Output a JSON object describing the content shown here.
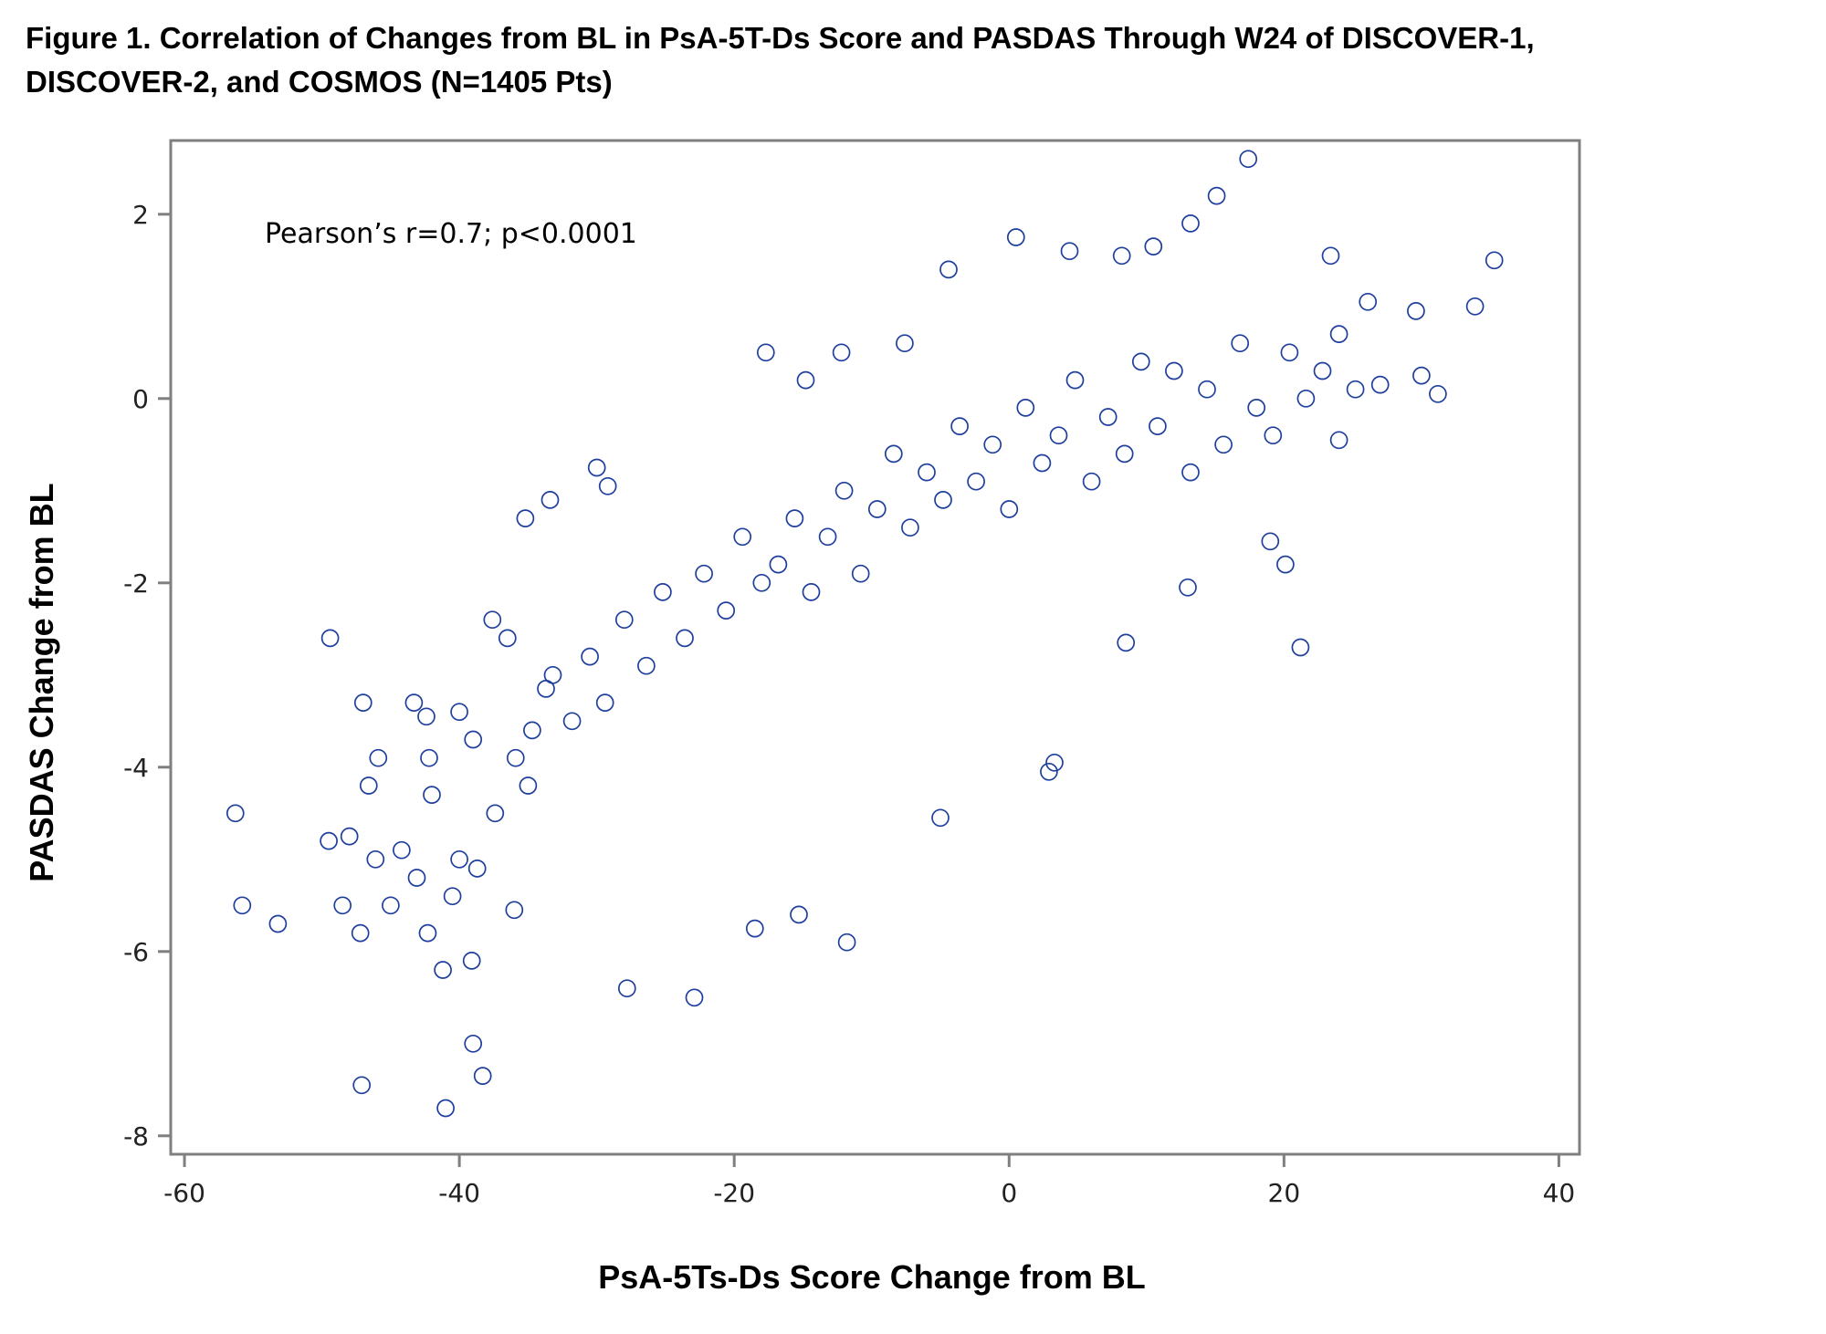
{
  "title": {
    "line1": "Figure 1. Correlation of Changes from BL in PsA-5T-Ds Score and PASDAS Through W24 of DISCOVER-1,",
    "line2": "DISCOVER-2, and COSMOS (N=1405 Pts)"
  },
  "chart_data": {
    "type": "scatter",
    "xlabel": "PsA-5Ts-Ds Score Change from BL",
    "ylabel": "PASDAS Change from BL",
    "annotation": "Pearson’s r=0.7;  p<0.0001",
    "xlim": [
      -61,
      41.5
    ],
    "ylim": [
      -8.2,
      2.8
    ],
    "x_ticks": [
      -60,
      -40,
      -20,
      0,
      20,
      40
    ],
    "x_tick_labels": [
      "-60",
      "-40",
      "-20",
      "0",
      "20",
      "40"
    ],
    "y_ticks": [
      -8,
      -6,
      -4,
      -2,
      0,
      2
    ],
    "y_tick_labels": [
      "-8",
      "-6",
      "-4",
      "-2",
      "0",
      "2"
    ],
    "grid": false,
    "legend": "none",
    "marker": "open-circle",
    "color": "#1f3f9e",
    "correlation_r": 0.7,
    "n_points": 1405,
    "x": [
      -56.3,
      -55.8,
      -53.2,
      -49.4,
      -49.5,
      -48.5,
      -47.2,
      -47.0,
      -46.6,
      -46.1,
      -45.0,
      -44.2,
      -43.1,
      -42.3,
      -42.0,
      -41.2,
      -40.5,
      -40.0,
      -39.1,
      -39.0,
      -38.3,
      -41.0,
      -47.1,
      -17.7,
      -14.8,
      -12.2,
      -7.6,
      -4.4,
      0.5,
      4.4,
      8.2,
      10.5,
      13.2,
      15.1,
      17.4,
      23.4,
      26.1,
      29.6,
      33.9,
      35.3,
      31.2,
      30.0,
      27.0,
      21.2,
      20.1,
      19.0,
      24.0,
      13.0,
      8.5,
      3.3,
      2.9,
      -5.0,
      -11.8,
      -15.3,
      -18.5,
      -22.9,
      -27.8,
      -36.0,
      -38.7,
      -42.4,
      -45.9,
      -48.0,
      -33.4,
      -30.0,
      -29.2,
      -35.2,
      -37.6,
      -36.5,
      -33.7,
      -34.7,
      -43.3,
      -42.2,
      -40.0,
      -39.0,
      -37.4,
      -35.9,
      -35.0,
      -33.2,
      -31.8,
      -30.5,
      -29.4,
      -28.0,
      -26.4,
      -25.2,
      -23.6,
      -22.2,
      -20.6,
      -19.4,
      -18.0,
      -16.8,
      -15.6,
      -14.4,
      -13.2,
      -12.0,
      -10.8,
      -9.6,
      -8.4,
      -7.2,
      -6.0,
      -4.8,
      -3.6,
      -2.4,
      -1.2,
      0.0,
      1.2,
      2.4,
      3.6,
      4.8,
      6.0,
      7.2,
      8.4,
      9.6,
      10.8,
      12.0,
      13.2,
      14.4,
      15.6,
      16.8,
      18.0,
      19.2,
      20.4,
      21.6,
      22.8,
      24.0,
      25.2
    ],
    "y": [
      -4.5,
      -5.5,
      -5.7,
      -2.6,
      -4.8,
      -5.5,
      -5.8,
      -3.3,
      -4.2,
      -5.0,
      -5.5,
      -4.9,
      -5.2,
      -5.8,
      -4.3,
      -6.2,
      -5.4,
      -5.0,
      -6.1,
      -7.0,
      -7.35,
      -7.7,
      -7.45,
      0.5,
      0.2,
      0.5,
      0.6,
      1.4,
      1.75,
      1.6,
      1.55,
      1.65,
      1.9,
      2.2,
      2.6,
      1.55,
      1.05,
      0.95,
      1.0,
      1.5,
      0.05,
      0.25,
      0.15,
      -2.7,
      -1.8,
      -1.55,
      -0.45,
      -2.05,
      -2.65,
      -3.95,
      -4.05,
      -4.55,
      -5.9,
      -5.6,
      -5.75,
      -6.5,
      -6.4,
      -5.55,
      -5.1,
      -3.45,
      -3.9,
      -4.75,
      -1.1,
      -0.75,
      -0.95,
      -1.3,
      -2.4,
      -2.6,
      -3.15,
      -3.6,
      -3.3,
      -3.9,
      -3.4,
      -3.7,
      -4.5,
      -3.9,
      -4.2,
      -3.0,
      -3.5,
      -2.8,
      -3.3,
      -2.4,
      -2.9,
      -2.1,
      -2.6,
      -1.9,
      -2.3,
      -1.5,
      -2.0,
      -1.8,
      -1.3,
      -2.1,
      -1.5,
      -1.0,
      -1.9,
      -1.2,
      -0.6,
      -1.4,
      -0.8,
      -1.1,
      -0.3,
      -0.9,
      -0.5,
      -1.2,
      -0.1,
      -0.7,
      -0.4,
      0.2,
      -0.9,
      -0.2,
      -0.6,
      0.4,
      -0.3,
      0.3,
      -0.8,
      0.1,
      -0.5,
      0.6,
      -0.1,
      -0.4,
      0.5,
      0.0,
      0.3,
      0.7,
      0.1
    ]
  }
}
